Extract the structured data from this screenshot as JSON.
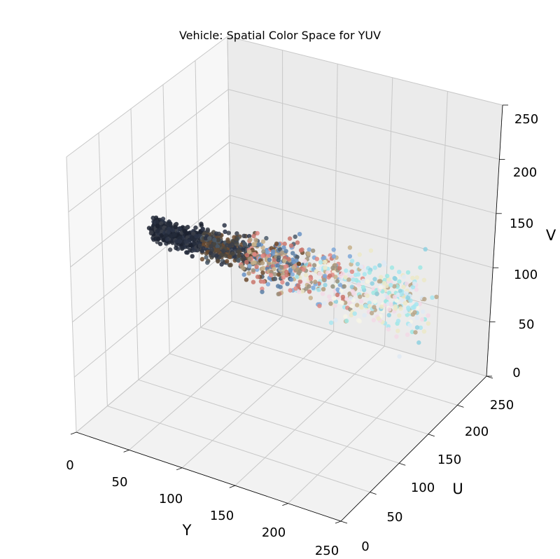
{
  "chart_data": {
    "type": "scatter",
    "title": "Vehicle: Spatial Color Space for YUV",
    "xlabel": "Y",
    "ylabel": "U",
    "zlabel": "V",
    "xlim": [
      0,
      250
    ],
    "ylim": [
      0,
      250
    ],
    "zlim": [
      0,
      250
    ],
    "x_ticks": [
      "0",
      "50",
      "100",
      "150",
      "200",
      "250"
    ],
    "y_ticks": [
      "0",
      "50",
      "100",
      "150",
      "200",
      "250"
    ],
    "z_ticks": [
      "0",
      "50",
      "100",
      "150",
      "200",
      "250"
    ],
    "grid": true,
    "projection": "3d",
    "point_color": "RGB of each pixel (dark navy/black at low Y, browns and blues mid, light cyan/pink/white at high Y)",
    "cluster": {
      "y_range": [
        0,
        255
      ],
      "u_center": 128,
      "v_center": 128,
      "description": "elongated diagonal cloud from dark (low Y) to bright (high Y) near U≈V≈128"
    }
  }
}
